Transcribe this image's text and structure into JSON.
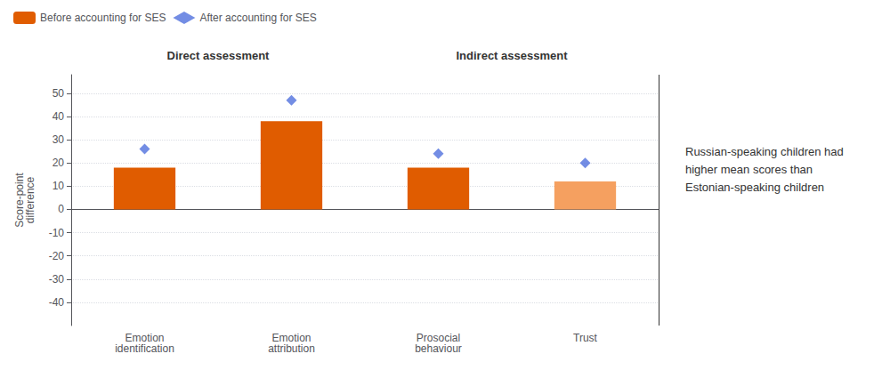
{
  "chart_data": {
    "type": "bar",
    "categories": [
      "Emotion\nidentification",
      "Emotion\nattribution",
      "Prosocial\nbehaviour",
      "Trust"
    ],
    "series": [
      {
        "name": "Before accounting for SES",
        "type": "bar",
        "colors": [
          "#E05C00",
          "#E05C00",
          "#E05C00",
          "#F5A060"
        ],
        "values": [
          18,
          38,
          18,
          12
        ]
      },
      {
        "name": "After accounting for SES",
        "type": "scatter",
        "marker": "diamond",
        "values": [
          26,
          47,
          24,
          20
        ]
      }
    ],
    "ylabel": "Score-point\ndifference",
    "ylim": [
      -50,
      58
    ],
    "yticks": [
      -40,
      -30,
      -20,
      -10,
      0,
      10,
      20,
      30,
      40,
      50
    ],
    "grid": true,
    "legend": "top left",
    "sections": [
      {
        "label": "Direct assessment",
        "categories": [
          "Emotion\nidentification",
          "Emotion\nattribution"
        ]
      },
      {
        "label": "Indirect assessment",
        "categories": [
          "Prosocial\nbehaviour",
          "Trust"
        ]
      }
    ],
    "annotations": [
      "Russian-speaking children had higher mean scores than Estonian-speaking children"
    ]
  }
}
